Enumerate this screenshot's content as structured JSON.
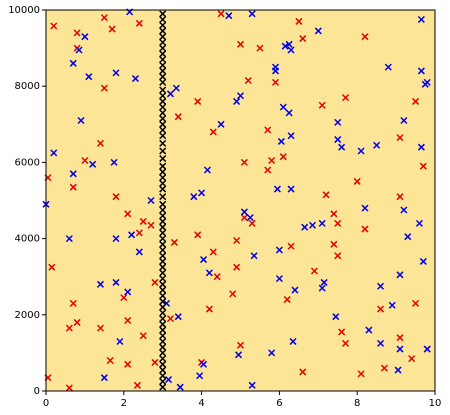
{
  "chart_data": {
    "type": "scatter",
    "plot_background": "#fde598",
    "xlim": [
      0,
      10
    ],
    "xticks": [
      0,
      2,
      4,
      6,
      8,
      10
    ],
    "ylim": [
      0,
      10000
    ],
    "yticks": [
      0,
      2000,
      4000,
      6000,
      8000,
      10000
    ],
    "series": [
      {
        "color": "#e60000",
        "x": [
          0.2,
          0.8,
          0.8,
          1.5,
          1.7,
          1.5,
          2.4,
          4.5,
          5.0,
          5.5,
          6.5,
          6.6,
          8.2,
          5.2,
          5.9,
          3.9,
          3.4,
          4.3,
          5.7,
          7.1,
          7.7,
          9.5,
          9.1,
          1.4,
          1.0,
          0.05,
          0.7,
          1.8,
          2.1,
          2.5,
          2.4,
          2.7,
          3.9,
          5.1,
          5.3,
          5.8,
          6.1,
          5.7,
          5.1,
          7.2,
          8.0,
          7.4,
          7.5,
          8.2,
          9.7,
          9.1,
          0.15,
          6.3,
          7.4,
          7.5,
          6.9,
          4.9,
          4.9,
          4.3,
          4.4,
          4.2,
          4.8,
          6.2,
          3.3,
          2.8,
          2.0,
          2.1,
          0.7,
          0.8,
          0.6,
          1.4,
          2.5,
          3.2,
          2.8,
          1.65,
          2.1,
          2.35,
          0.6,
          0.05,
          4.0,
          5.0,
          6.6,
          7.6,
          7.7,
          8.1,
          8.6,
          9.1,
          8.7,
          9.5,
          9.8,
          9.4
        ],
        "values": [
          9580,
          9400,
          9000,
          9800,
          9500,
          7950,
          9650,
          9900,
          9100,
          9000,
          9700,
          9250,
          9300,
          8150,
          8100,
          7600,
          7200,
          6800,
          6850,
          7500,
          7700,
          7600,
          6650,
          6500,
          6050,
          5600,
          5350,
          5100,
          4650,
          4450,
          4150,
          4350,
          4100,
          4550,
          4400,
          6050,
          6150,
          5800,
          6000,
          5150,
          5500,
          4650,
          4400,
          4250,
          5900,
          5100,
          3250,
          3800,
          3850,
          3550,
          3150,
          3950,
          3250,
          3650,
          3000,
          2150,
          2550,
          2400,
          3900,
          2850,
          2450,
          1850,
          2300,
          1800,
          1650,
          1650,
          1450,
          1900,
          750,
          800,
          700,
          150,
          80,
          350,
          750,
          1200,
          500,
          1550,
          1250,
          450,
          2150,
          1400,
          600,
          2300,
          1100,
          850
        ]
      },
      {
        "color": "#0000e6",
        "x": [
          0,
          0.2,
          0.7,
          0.7,
          1.0,
          0.85,
          0.9,
          1.1,
          1.8,
          2.3,
          2.15,
          1.75,
          1.2,
          0.6,
          1.8,
          2.2,
          2.4,
          2.7,
          1.4,
          1.8,
          2.1,
          1.9,
          1.5,
          3.4,
          3.15,
          3.45,
          3.95,
          4.05,
          4.95,
          5.1,
          5.25,
          4.0,
          3.8,
          4.15,
          4.5,
          4.9,
          5.0,
          3.2,
          3.35,
          4.7,
          5.3,
          5.9,
          5.9,
          6.15,
          6.25,
          6.3,
          6.1,
          6.25,
          7.0,
          7.5,
          7.5,
          7.6,
          8.1,
          8.5,
          8.8,
          9.65,
          9.65,
          9.75,
          9.8,
          9.2,
          9.65,
          6.3,
          6.05,
          5.95,
          6.3,
          5.35,
          6.0,
          6.65,
          6.85,
          7.1,
          8.2,
          9.2,
          9.6,
          9.3,
          9.7,
          9.1,
          6.0,
          6.4,
          7.1,
          7.15,
          7.45,
          8.3,
          8.6,
          8.9,
          8.6,
          9.05,
          9.1,
          9.8,
          6.35,
          5.8,
          5.3,
          4.2,
          4.05,
          3.1
        ],
        "values": [
          4900,
          6250,
          5700,
          8600,
          9300,
          8950,
          7100,
          8250,
          8350,
          8200,
          9950,
          6000,
          5950,
          4000,
          4000,
          4100,
          3650,
          5000,
          2800,
          2850,
          2600,
          1300,
          350,
          1950,
          300,
          100,
          400,
          700,
          950,
          4700,
          4550,
          5200,
          5100,
          5800,
          7000,
          7600,
          7750,
          7800,
          7950,
          9850,
          9900,
          8500,
          8400,
          9050,
          9100,
          8950,
          7450,
          7300,
          9450,
          7050,
          6600,
          6400,
          6300,
          6450,
          8500,
          9750,
          8400,
          8050,
          8100,
          7100,
          6400,
          6700,
          6550,
          5300,
          5300,
          3550,
          3700,
          4300,
          4350,
          4400,
          4800,
          4750,
          4400,
          4050,
          3400,
          3050,
          2950,
          2650,
          2700,
          2850,
          1950,
          1600,
          1250,
          2250,
          2750,
          550,
          1100,
          1100,
          1300,
          1000,
          150,
          3100,
          3450,
          2300
        ]
      },
      {
        "color": "#000000",
        "x": [
          3,
          3,
          3,
          3,
          3,
          3,
          3,
          3,
          3,
          3,
          3,
          3,
          3,
          3,
          3,
          3,
          3,
          3,
          3,
          3,
          3,
          3,
          3,
          3,
          3,
          3,
          3,
          3,
          3,
          3,
          3,
          3,
          3,
          3,
          3,
          3,
          3,
          3,
          3,
          3,
          3,
          3,
          3,
          3,
          3,
          3,
          3,
          3,
          3,
          3,
          3,
          3,
          3,
          3,
          3,
          3,
          3,
          3,
          3,
          3,
          3,
          3,
          3,
          3
        ],
        "values": [
          9900,
          9750,
          9600,
          9450,
          9300,
          9150,
          9000,
          8850,
          8700,
          8550,
          8400,
          8250,
          8100,
          7900,
          7750,
          7600,
          7450,
          7300,
          7150,
          7000,
          6850,
          6700,
          6500,
          6300,
          6100,
          5900,
          5750,
          5600,
          5450,
          5300,
          5100,
          4900,
          4750,
          4600,
          4450,
          4300,
          4150,
          4000,
          3850,
          3700,
          3550,
          3400,
          3250,
          3100,
          2950,
          2800,
          2650,
          2500,
          2350,
          2200,
          2050,
          1900,
          1750,
          1600,
          1450,
          1300,
          1150,
          1000,
          850,
          700,
          550,
          400,
          250,
          100
        ]
      }
    ]
  }
}
